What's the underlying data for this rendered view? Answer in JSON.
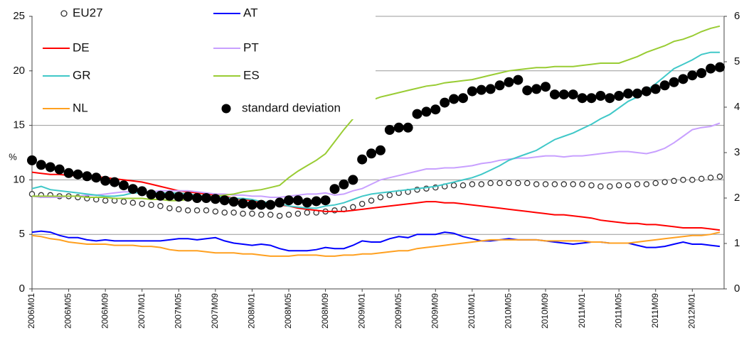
{
  "chart_data": {
    "type": "line",
    "y_label": "%",
    "categories": [
      "2006M01",
      null,
      null,
      null,
      "2006M05",
      null,
      null,
      null,
      "2006M09",
      null,
      null,
      null,
      "2007M01",
      null,
      null,
      null,
      "2007M05",
      null,
      null,
      null,
      "2007M09",
      null,
      null,
      null,
      "2008M01",
      null,
      null,
      null,
      "2008M05",
      null,
      null,
      null,
      "2008M09",
      null,
      null,
      null,
      "2009M01",
      null,
      null,
      null,
      "2009M05",
      null,
      null,
      null,
      "2009M09",
      null,
      null,
      null,
      "2010M01",
      null,
      null,
      null,
      "2010M05",
      null,
      null,
      null,
      "2010M09",
      null,
      null,
      null,
      "2011M01",
      null,
      null,
      null,
      "2011M05",
      null,
      null,
      null,
      "2011M09",
      null,
      null,
      null,
      "2012M01",
      null,
      null,
      null
    ],
    "ylim": [
      0,
      25
    ],
    "yticks": [
      0,
      5,
      10,
      15,
      20,
      25
    ],
    "y2lim": [
      0,
      6
    ],
    "y2ticks": [
      0,
      1,
      2,
      3,
      4,
      5,
      6
    ],
    "grid": true,
    "series": [
      {
        "name": "EU27",
        "color": "#333333",
        "marker": "open-circle",
        "values": [
          8.7,
          8.6,
          8.6,
          8.5,
          8.5,
          8.4,
          8.3,
          8.2,
          8.1,
          8.1,
          8.0,
          7.9,
          7.8,
          7.7,
          7.6,
          7.4,
          7.3,
          7.2,
          7.2,
          7.2,
          7.1,
          7.0,
          7.0,
          6.9,
          6.9,
          6.8,
          6.8,
          6.7,
          6.8,
          6.9,
          7.0,
          7.0,
          7.1,
          7.2,
          7.3,
          7.5,
          7.8,
          8.1,
          8.4,
          8.6,
          8.8,
          8.9,
          9.1,
          9.2,
          9.3,
          9.4,
          9.5,
          9.5,
          9.6,
          9.6,
          9.7,
          9.7,
          9.7,
          9.7,
          9.7,
          9.6,
          9.6,
          9.6,
          9.6,
          9.6,
          9.6,
          9.5,
          9.4,
          9.4,
          9.5,
          9.5,
          9.6,
          9.6,
          9.7,
          9.8,
          9.9,
          10.0,
          10.0,
          10.1,
          10.2,
          10.3
        ]
      },
      {
        "name": "AT",
        "color": "#0000ff",
        "values": [
          5.2,
          5.3,
          5.2,
          4.9,
          4.7,
          4.7,
          4.5,
          4.4,
          4.5,
          4.4,
          4.4,
          4.4,
          4.4,
          4.4,
          4.4,
          4.5,
          4.6,
          4.6,
          4.5,
          4.6,
          4.7,
          4.4,
          4.2,
          4.1,
          4.0,
          4.1,
          4.0,
          3.7,
          3.5,
          3.5,
          3.5,
          3.6,
          3.8,
          3.7,
          3.7,
          4.0,
          4.4,
          4.3,
          4.3,
          4.6,
          4.8,
          4.7,
          5.0,
          5.0,
          5.0,
          5.2,
          5.1,
          4.8,
          4.6,
          4.4,
          4.4,
          4.5,
          4.6,
          4.5,
          4.5,
          4.5,
          4.4,
          4.3,
          4.2,
          4.1,
          4.2,
          4.3,
          4.3,
          4.2,
          4.2,
          4.2,
          4.0,
          3.8,
          3.8,
          3.9,
          4.1,
          4.3,
          4.1,
          4.1,
          4.0,
          3.9
        ]
      },
      {
        "name": "DE",
        "color": "#ff0000",
        "values": [
          10.7,
          10.6,
          10.5,
          10.5,
          10.4,
          10.4,
          10.3,
          10.3,
          10.2,
          10.1,
          10.0,
          9.9,
          9.8,
          9.6,
          9.4,
          9.2,
          9.0,
          8.9,
          8.8,
          8.7,
          8.6,
          8.5,
          8.3,
          8.2,
          8.1,
          7.9,
          7.8,
          7.7,
          7.6,
          7.4,
          7.3,
          7.2,
          7.1,
          7.1,
          7.1,
          7.2,
          7.3,
          7.4,
          7.5,
          7.6,
          7.7,
          7.8,
          7.9,
          8.0,
          8.0,
          7.9,
          7.9,
          7.8,
          7.7,
          7.6,
          7.5,
          7.4,
          7.3,
          7.2,
          7.1,
          7.0,
          6.9,
          6.8,
          6.8,
          6.7,
          6.6,
          6.5,
          6.3,
          6.2,
          6.1,
          6.0,
          6.0,
          5.9,
          5.9,
          5.8,
          5.7,
          5.6,
          5.6,
          5.6,
          5.5,
          5.4
        ]
      },
      {
        "name": "PT",
        "color": "#c8a0ff",
        "values": [
          8.5,
          8.4,
          8.4,
          8.4,
          8.5,
          8.5,
          8.6,
          8.6,
          8.7,
          8.8,
          8.9,
          8.9,
          8.9,
          8.9,
          9.0,
          9.0,
          9.0,
          9.0,
          8.9,
          8.8,
          8.7,
          8.7,
          8.6,
          8.6,
          8.5,
          8.5,
          8.4,
          8.4,
          8.5,
          8.6,
          8.7,
          8.7,
          8.8,
          8.6,
          8.7,
          9.0,
          9.2,
          9.6,
          10.0,
          10.2,
          10.4,
          10.6,
          10.8,
          11.0,
          11.0,
          11.1,
          11.1,
          11.2,
          11.3,
          11.5,
          11.6,
          11.8,
          11.9,
          12.0,
          12.0,
          12.1,
          12.2,
          12.2,
          12.1,
          12.2,
          12.2,
          12.3,
          12.4,
          12.5,
          12.6,
          12.6,
          12.5,
          12.4,
          12.6,
          12.9,
          13.4,
          14.0,
          14.6,
          14.8,
          14.9,
          15.2
        ]
      },
      {
        "name": "GR",
        "color": "#40c8c8",
        "values": [
          9.2,
          9.4,
          9.1,
          9.0,
          8.9,
          8.8,
          8.7,
          8.6,
          8.5,
          8.5,
          8.6,
          8.8,
          8.8,
          8.8,
          8.8,
          8.8,
          8.8,
          8.7,
          8.6,
          8.5,
          8.5,
          8.4,
          8.3,
          8.3,
          8.2,
          8.0,
          7.9,
          7.8,
          7.6,
          7.5,
          7.4,
          7.4,
          7.6,
          7.7,
          7.9,
          8.2,
          8.5,
          8.7,
          8.8,
          8.9,
          9.0,
          9.1,
          9.2,
          9.3,
          9.4,
          9.6,
          9.8,
          10.0,
          10.2,
          10.5,
          10.9,
          11.3,
          11.8,
          12.1,
          12.4,
          12.7,
          13.2,
          13.7,
          14.0,
          14.3,
          14.7,
          15.1,
          15.6,
          16.0,
          16.6,
          17.2,
          17.6,
          18.2,
          18.8,
          19.5,
          20.2,
          20.6,
          21.0,
          21.5,
          21.7,
          21.7
        ]
      },
      {
        "name": "ES",
        "color": "#99cc33",
        "values": [
          8.5,
          8.5,
          8.5,
          8.5,
          8.5,
          8.5,
          8.4,
          8.4,
          8.4,
          8.3,
          8.3,
          8.3,
          8.3,
          8.2,
          8.2,
          8.1,
          8.1,
          8.2,
          8.3,
          8.4,
          8.5,
          8.6,
          8.7,
          8.9,
          9.0,
          9.1,
          9.3,
          9.5,
          10.2,
          10.8,
          11.3,
          11.8,
          12.4,
          13.5,
          14.6,
          15.6,
          16.5,
          17.3,
          17.6,
          17.8,
          18.0,
          18.2,
          18.4,
          18.6,
          18.7,
          18.9,
          19.0,
          19.1,
          19.2,
          19.4,
          19.6,
          19.8,
          20.0,
          20.1,
          20.2,
          20.3,
          20.3,
          20.4,
          20.4,
          20.4,
          20.5,
          20.6,
          20.7,
          20.7,
          20.7,
          21.0,
          21.3,
          21.7,
          22.0,
          22.3,
          22.7,
          22.9,
          23.2,
          23.6,
          23.9,
          24.1
        ]
      },
      {
        "name": "NL",
        "color": "#ffa020",
        "values": [
          4.9,
          4.8,
          4.6,
          4.5,
          4.3,
          4.2,
          4.1,
          4.1,
          4.1,
          4.0,
          4.0,
          4.0,
          3.9,
          3.9,
          3.8,
          3.6,
          3.5,
          3.5,
          3.5,
          3.4,
          3.3,
          3.3,
          3.3,
          3.2,
          3.2,
          3.1,
          3.0,
          3.0,
          3.0,
          3.1,
          3.1,
          3.1,
          3.0,
          3.0,
          3.1,
          3.1,
          3.2,
          3.2,
          3.3,
          3.4,
          3.5,
          3.5,
          3.7,
          3.8,
          3.9,
          4.0,
          4.1,
          4.2,
          4.3,
          4.4,
          4.5,
          4.5,
          4.5,
          4.5,
          4.5,
          4.5,
          4.4,
          4.4,
          4.4,
          4.4,
          4.4,
          4.3,
          4.3,
          4.2,
          4.2,
          4.2,
          4.3,
          4.4,
          4.5,
          4.6,
          4.7,
          4.8,
          4.9,
          4.9,
          5.0,
          5.2
        ]
      },
      {
        "name": "standard deviation",
        "color": "#000000",
        "marker": "circle",
        "axis": "y2",
        "values": [
          2.83,
          2.73,
          2.68,
          2.63,
          2.55,
          2.52,
          2.48,
          2.45,
          2.38,
          2.35,
          2.28,
          2.2,
          2.15,
          2.08,
          2.05,
          2.05,
          2.03,
          2.03,
          2.0,
          2.0,
          1.98,
          1.95,
          1.92,
          1.88,
          1.85,
          1.85,
          1.85,
          1.9,
          1.95,
          1.95,
          1.9,
          1.93,
          1.95,
          2.2,
          2.3,
          2.4,
          2.85,
          2.98,
          3.05,
          3.5,
          3.55,
          3.55,
          3.85,
          3.9,
          3.95,
          4.1,
          4.18,
          4.2,
          4.35,
          4.38,
          4.4,
          4.48,
          4.55,
          4.6,
          4.37,
          4.4,
          4.45,
          4.28,
          4.28,
          4.28,
          4.2,
          4.2,
          4.25,
          4.2,
          4.25,
          4.3,
          4.3,
          4.35,
          4.4,
          4.48,
          4.55,
          4.62,
          4.7,
          4.75,
          4.85,
          4.88
        ]
      }
    ]
  }
}
